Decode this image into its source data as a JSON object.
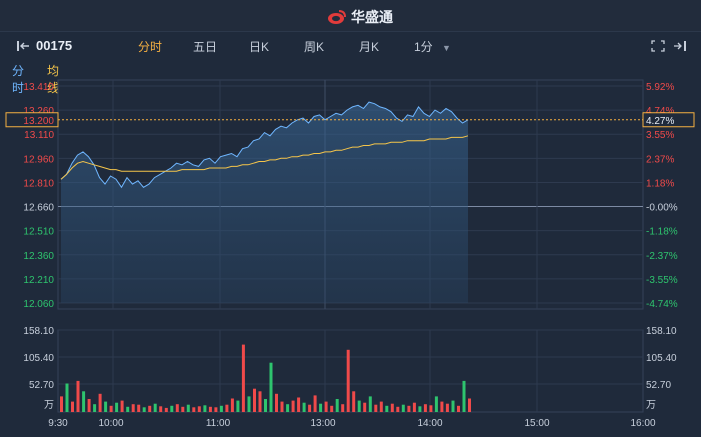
{
  "brand": {
    "name": "华盛通",
    "logo_icon": "huasheng-logo-icon"
  },
  "toolbar": {
    "ticker": "00175",
    "tabs": [
      {
        "label": "分时",
        "active": true
      },
      {
        "label": "五日",
        "active": false
      },
      {
        "label": "日K",
        "active": false
      },
      {
        "label": "周K",
        "active": false
      },
      {
        "label": "月K",
        "active": false
      },
      {
        "label": "1分",
        "active": false
      }
    ],
    "fullscreen_icon": "expand-icon",
    "exit_icon": "exit-icon"
  },
  "subtabs": {
    "intraday": "分时",
    "avg_line": "均线"
  },
  "colors": {
    "bg": "#1f2a3b",
    "up": "#f04a4a",
    "down": "#2ec46e",
    "price_line": "#6fb6ff",
    "avg_line": "#f5c54a",
    "current_box": "#f5b042"
  },
  "chart_data": {
    "type": "line",
    "price_axis_left": [
      "13.410",
      "13.260",
      "13.110",
      "12.960",
      "12.810",
      "12.660",
      "12.510",
      "12.360",
      "12.210",
      "12.060"
    ],
    "pct_axis_right": [
      "5.92%",
      "4.74%",
      "3.55%",
      "2.37%",
      "1.18%",
      "-0.00%",
      "-1.18%",
      "-2.37%",
      "-3.55%",
      "-4.74%"
    ],
    "current_price": "13.200",
    "current_pct": "4.27%",
    "prev_close": 12.66,
    "ylim": [
      12.06,
      13.41
    ],
    "volume_axis": [
      "158.10",
      "105.40",
      "52.70",
      "万"
    ],
    "volume_max": 158.1,
    "time_labels": [
      "9:30",
      "10:00",
      "11:00",
      "13:00",
      "14:00",
      "15:00",
      "16:00"
    ],
    "price_series": [
      12.83,
      12.86,
      12.93,
      12.98,
      13.0,
      12.97,
      12.92,
      12.84,
      12.8,
      12.85,
      12.83,
      12.78,
      12.84,
      12.8,
      12.82,
      12.78,
      12.8,
      12.84,
      12.86,
      12.88,
      12.9,
      12.93,
      12.92,
      12.94,
      12.92,
      12.91,
      12.95,
      12.96,
      12.93,
      12.97,
      12.98,
      12.99,
      12.97,
      13.02,
      13.03,
      13.07,
      13.08,
      13.12,
      13.1,
      13.14,
      13.16,
      13.15,
      13.18,
      13.2,
      13.21,
      13.18,
      13.22,
      13.23,
      13.2,
      13.22,
      13.24,
      13.23,
      13.26,
      13.28,
      13.29,
      13.27,
      13.31,
      13.3,
      13.28,
      13.27,
      13.25,
      13.21,
      13.19,
      13.23,
      13.22,
      13.28,
      13.24,
      13.22,
      13.26,
      13.24,
      13.27,
      13.25,
      13.21,
      13.18,
      13.2
    ],
    "avg_series": [
      12.83,
      12.86,
      12.9,
      12.93,
      12.94,
      12.93,
      12.92,
      12.91,
      12.9,
      12.89,
      12.89,
      12.88,
      12.88,
      12.88,
      12.88,
      12.88,
      12.88,
      12.88,
      12.88,
      12.88,
      12.88,
      12.88,
      12.89,
      12.89,
      12.89,
      12.89,
      12.89,
      12.9,
      12.9,
      12.9,
      12.9,
      12.91,
      12.91,
      12.92,
      12.92,
      12.93,
      12.94,
      12.94,
      12.95,
      12.95,
      12.96,
      12.96,
      12.97,
      12.97,
      12.98,
      12.98,
      12.99,
      12.99,
      13.0,
      13.0,
      13.01,
      13.01,
      13.02,
      13.03,
      13.03,
      13.04,
      13.04,
      13.05,
      13.05,
      13.05,
      13.06,
      13.06,
      13.06,
      13.07,
      13.07,
      13.07,
      13.07,
      13.08,
      13.08,
      13.08,
      13.08,
      13.09,
      13.09,
      13.09,
      13.1
    ],
    "volume_series": [
      {
        "v": 30,
        "up": true
      },
      {
        "v": 55,
        "up": false
      },
      {
        "v": 20,
        "up": true
      },
      {
        "v": 60,
        "up": true
      },
      {
        "v": 40,
        "up": false
      },
      {
        "v": 25,
        "up": true
      },
      {
        "v": 15,
        "up": false
      },
      {
        "v": 35,
        "up": true
      },
      {
        "v": 20,
        "up": false
      },
      {
        "v": 12,
        "up": true
      },
      {
        "v": 18,
        "up": false
      },
      {
        "v": 22,
        "up": true
      },
      {
        "v": 10,
        "up": false
      },
      {
        "v": 15,
        "up": true
      },
      {
        "v": 14,
        "up": true
      },
      {
        "v": 9,
        "up": false
      },
      {
        "v": 12,
        "up": true
      },
      {
        "v": 16,
        "up": false
      },
      {
        "v": 11,
        "up": true
      },
      {
        "v": 8,
        "up": true
      },
      {
        "v": 12,
        "up": false
      },
      {
        "v": 15,
        "up": true
      },
      {
        "v": 10,
        "up": true
      },
      {
        "v": 14,
        "up": false
      },
      {
        "v": 9,
        "up": true
      },
      {
        "v": 11,
        "up": true
      },
      {
        "v": 13,
        "up": false
      },
      {
        "v": 10,
        "up": true
      },
      {
        "v": 9,
        "up": true
      },
      {
        "v": 12,
        "up": false
      },
      {
        "v": 14,
        "up": true
      },
      {
        "v": 26,
        "up": true
      },
      {
        "v": 22,
        "up": false
      },
      {
        "v": 130,
        "up": true
      },
      {
        "v": 30,
        "up": false
      },
      {
        "v": 45,
        "up": true
      },
      {
        "v": 40,
        "up": true
      },
      {
        "v": 25,
        "up": false
      },
      {
        "v": 95,
        "up": false
      },
      {
        "v": 35,
        "up": true
      },
      {
        "v": 20,
        "up": true
      },
      {
        "v": 15,
        "up": false
      },
      {
        "v": 22,
        "up": true
      },
      {
        "v": 28,
        "up": true
      },
      {
        "v": 18,
        "up": false
      },
      {
        "v": 14,
        "up": true
      },
      {
        "v": 32,
        "up": true
      },
      {
        "v": 16,
        "up": false
      },
      {
        "v": 20,
        "up": true
      },
      {
        "v": 12,
        "up": true
      },
      {
        "v": 25,
        "up": false
      },
      {
        "v": 15,
        "up": true
      },
      {
        "v": 120,
        "up": true
      },
      {
        "v": 40,
        "up": true
      },
      {
        "v": 22,
        "up": false
      },
      {
        "v": 18,
        "up": true
      },
      {
        "v": 30,
        "up": false
      },
      {
        "v": 14,
        "up": true
      },
      {
        "v": 20,
        "up": true
      },
      {
        "v": 12,
        "up": false
      },
      {
        "v": 16,
        "up": true
      },
      {
        "v": 10,
        "up": true
      },
      {
        "v": 14,
        "up": false
      },
      {
        "v": 12,
        "up": true
      },
      {
        "v": 18,
        "up": true
      },
      {
        "v": 11,
        "up": false
      },
      {
        "v": 15,
        "up": true
      },
      {
        "v": 13,
        "up": true
      },
      {
        "v": 30,
        "up": false
      },
      {
        "v": 20,
        "up": true
      },
      {
        "v": 16,
        "up": true
      },
      {
        "v": 22,
        "up": false
      },
      {
        "v": 12,
        "up": true
      },
      {
        "v": 60,
        "up": false
      },
      {
        "v": 26,
        "up": true
      }
    ]
  }
}
